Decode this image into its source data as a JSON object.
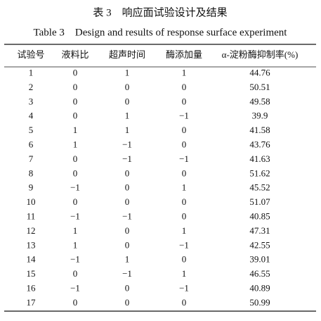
{
  "header": {
    "title_cn": "表 3　响应面试验设计及结果",
    "title_en": "Table 3　Design and results of response surface experiment"
  },
  "table": {
    "columns": [
      "试验号",
      "液料比",
      "超声时间",
      "酶添加量",
      "α-淀粉酶抑制率(%)"
    ],
    "rows": [
      [
        "1",
        "0",
        "1",
        "1",
        "44.76"
      ],
      [
        "2",
        "0",
        "0",
        "0",
        "50.51"
      ],
      [
        "3",
        "0",
        "0",
        "0",
        "49.58"
      ],
      [
        "4",
        "0",
        "1",
        "−1",
        "39.9"
      ],
      [
        "5",
        "1",
        "1",
        "0",
        "41.58"
      ],
      [
        "6",
        "1",
        "−1",
        "0",
        "43.76"
      ],
      [
        "7",
        "0",
        "−1",
        "−1",
        "41.63"
      ],
      [
        "8",
        "0",
        "0",
        "0",
        "51.62"
      ],
      [
        "9",
        "−1",
        "0",
        "1",
        "45.52"
      ],
      [
        "10",
        "0",
        "0",
        "0",
        "51.07"
      ],
      [
        "11",
        "−1",
        "−1",
        "0",
        "40.85"
      ],
      [
        "12",
        "1",
        "0",
        "1",
        "47.31"
      ],
      [
        "13",
        "1",
        "0",
        "−1",
        "42.55"
      ],
      [
        "14",
        "−1",
        "1",
        "0",
        "39.01"
      ],
      [
        "15",
        "0",
        "−1",
        "1",
        "46.55"
      ],
      [
        "16",
        "−1",
        "0",
        "−1",
        "40.89"
      ],
      [
        "17",
        "0",
        "0",
        "0",
        "50.99"
      ]
    ]
  }
}
